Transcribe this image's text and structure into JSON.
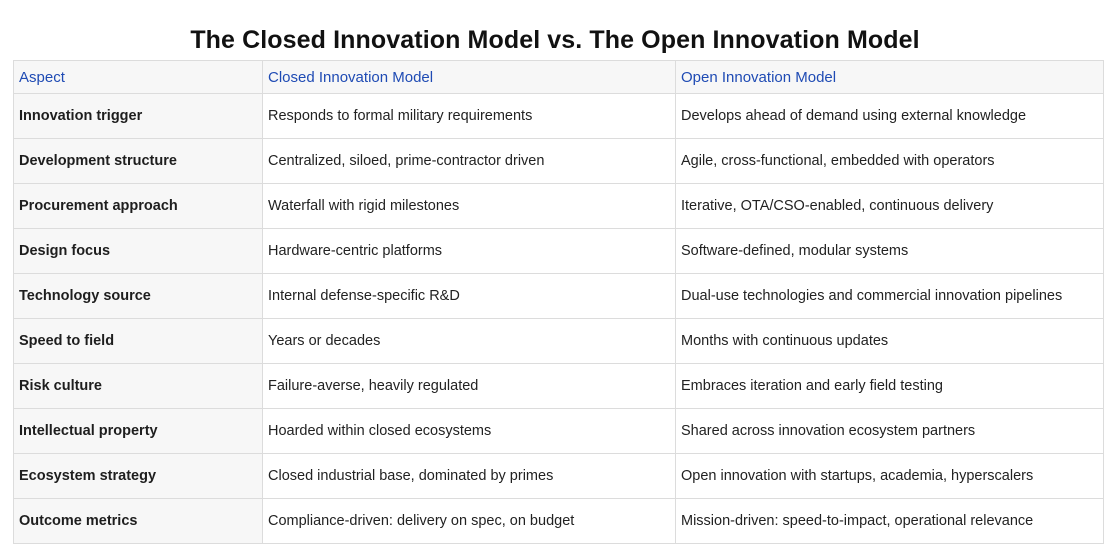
{
  "title": "The Closed Innovation Model vs. The Open Innovation Model",
  "colors": {
    "header_text": "#1f4bb4",
    "aspect_bg": "#f7f7f7",
    "border": "#dcdcdc"
  },
  "table": {
    "headers": [
      "Aspect",
      "Closed Innovation Model",
      "Open Innovation Model"
    ],
    "rows": [
      {
        "aspect": "Innovation trigger",
        "closed": "Responds to formal military requirements",
        "open": "Develops ahead of demand using external knowledge"
      },
      {
        "aspect": "Development structure",
        "closed": "Centralized, siloed, prime-contractor driven",
        "open": "Agile, cross-functional, embedded with operators"
      },
      {
        "aspect": "Procurement approach",
        "closed": "Waterfall with rigid milestones",
        "open": "Iterative, OTA/CSO-enabled, continuous delivery"
      },
      {
        "aspect": "Design focus",
        "closed": "Hardware-centric platforms",
        "open": "Software-defined, modular systems"
      },
      {
        "aspect": "Technology source",
        "closed": "Internal defense-specific R&D",
        "open": "Dual-use technologies and commercial innovation pipelines"
      },
      {
        "aspect": "Speed to field",
        "closed": "Years or decades",
        "open": "Months with continuous updates"
      },
      {
        "aspect": "Risk culture",
        "closed": "Failure-averse, heavily regulated",
        "open": "Embraces iteration and early field testing"
      },
      {
        "aspect": "Intellectual property",
        "closed": "Hoarded within closed ecosystems",
        "open": "Shared across innovation ecosystem partners"
      },
      {
        "aspect": "Ecosystem strategy",
        "closed": "Closed industrial base, dominated by primes",
        "open": "Open innovation with startups, academia, hyperscalers"
      },
      {
        "aspect": "Outcome metrics",
        "closed": "Compliance-driven: delivery on spec, on budget",
        "open": "Mission-driven: speed-to-impact, operational relevance"
      }
    ]
  }
}
